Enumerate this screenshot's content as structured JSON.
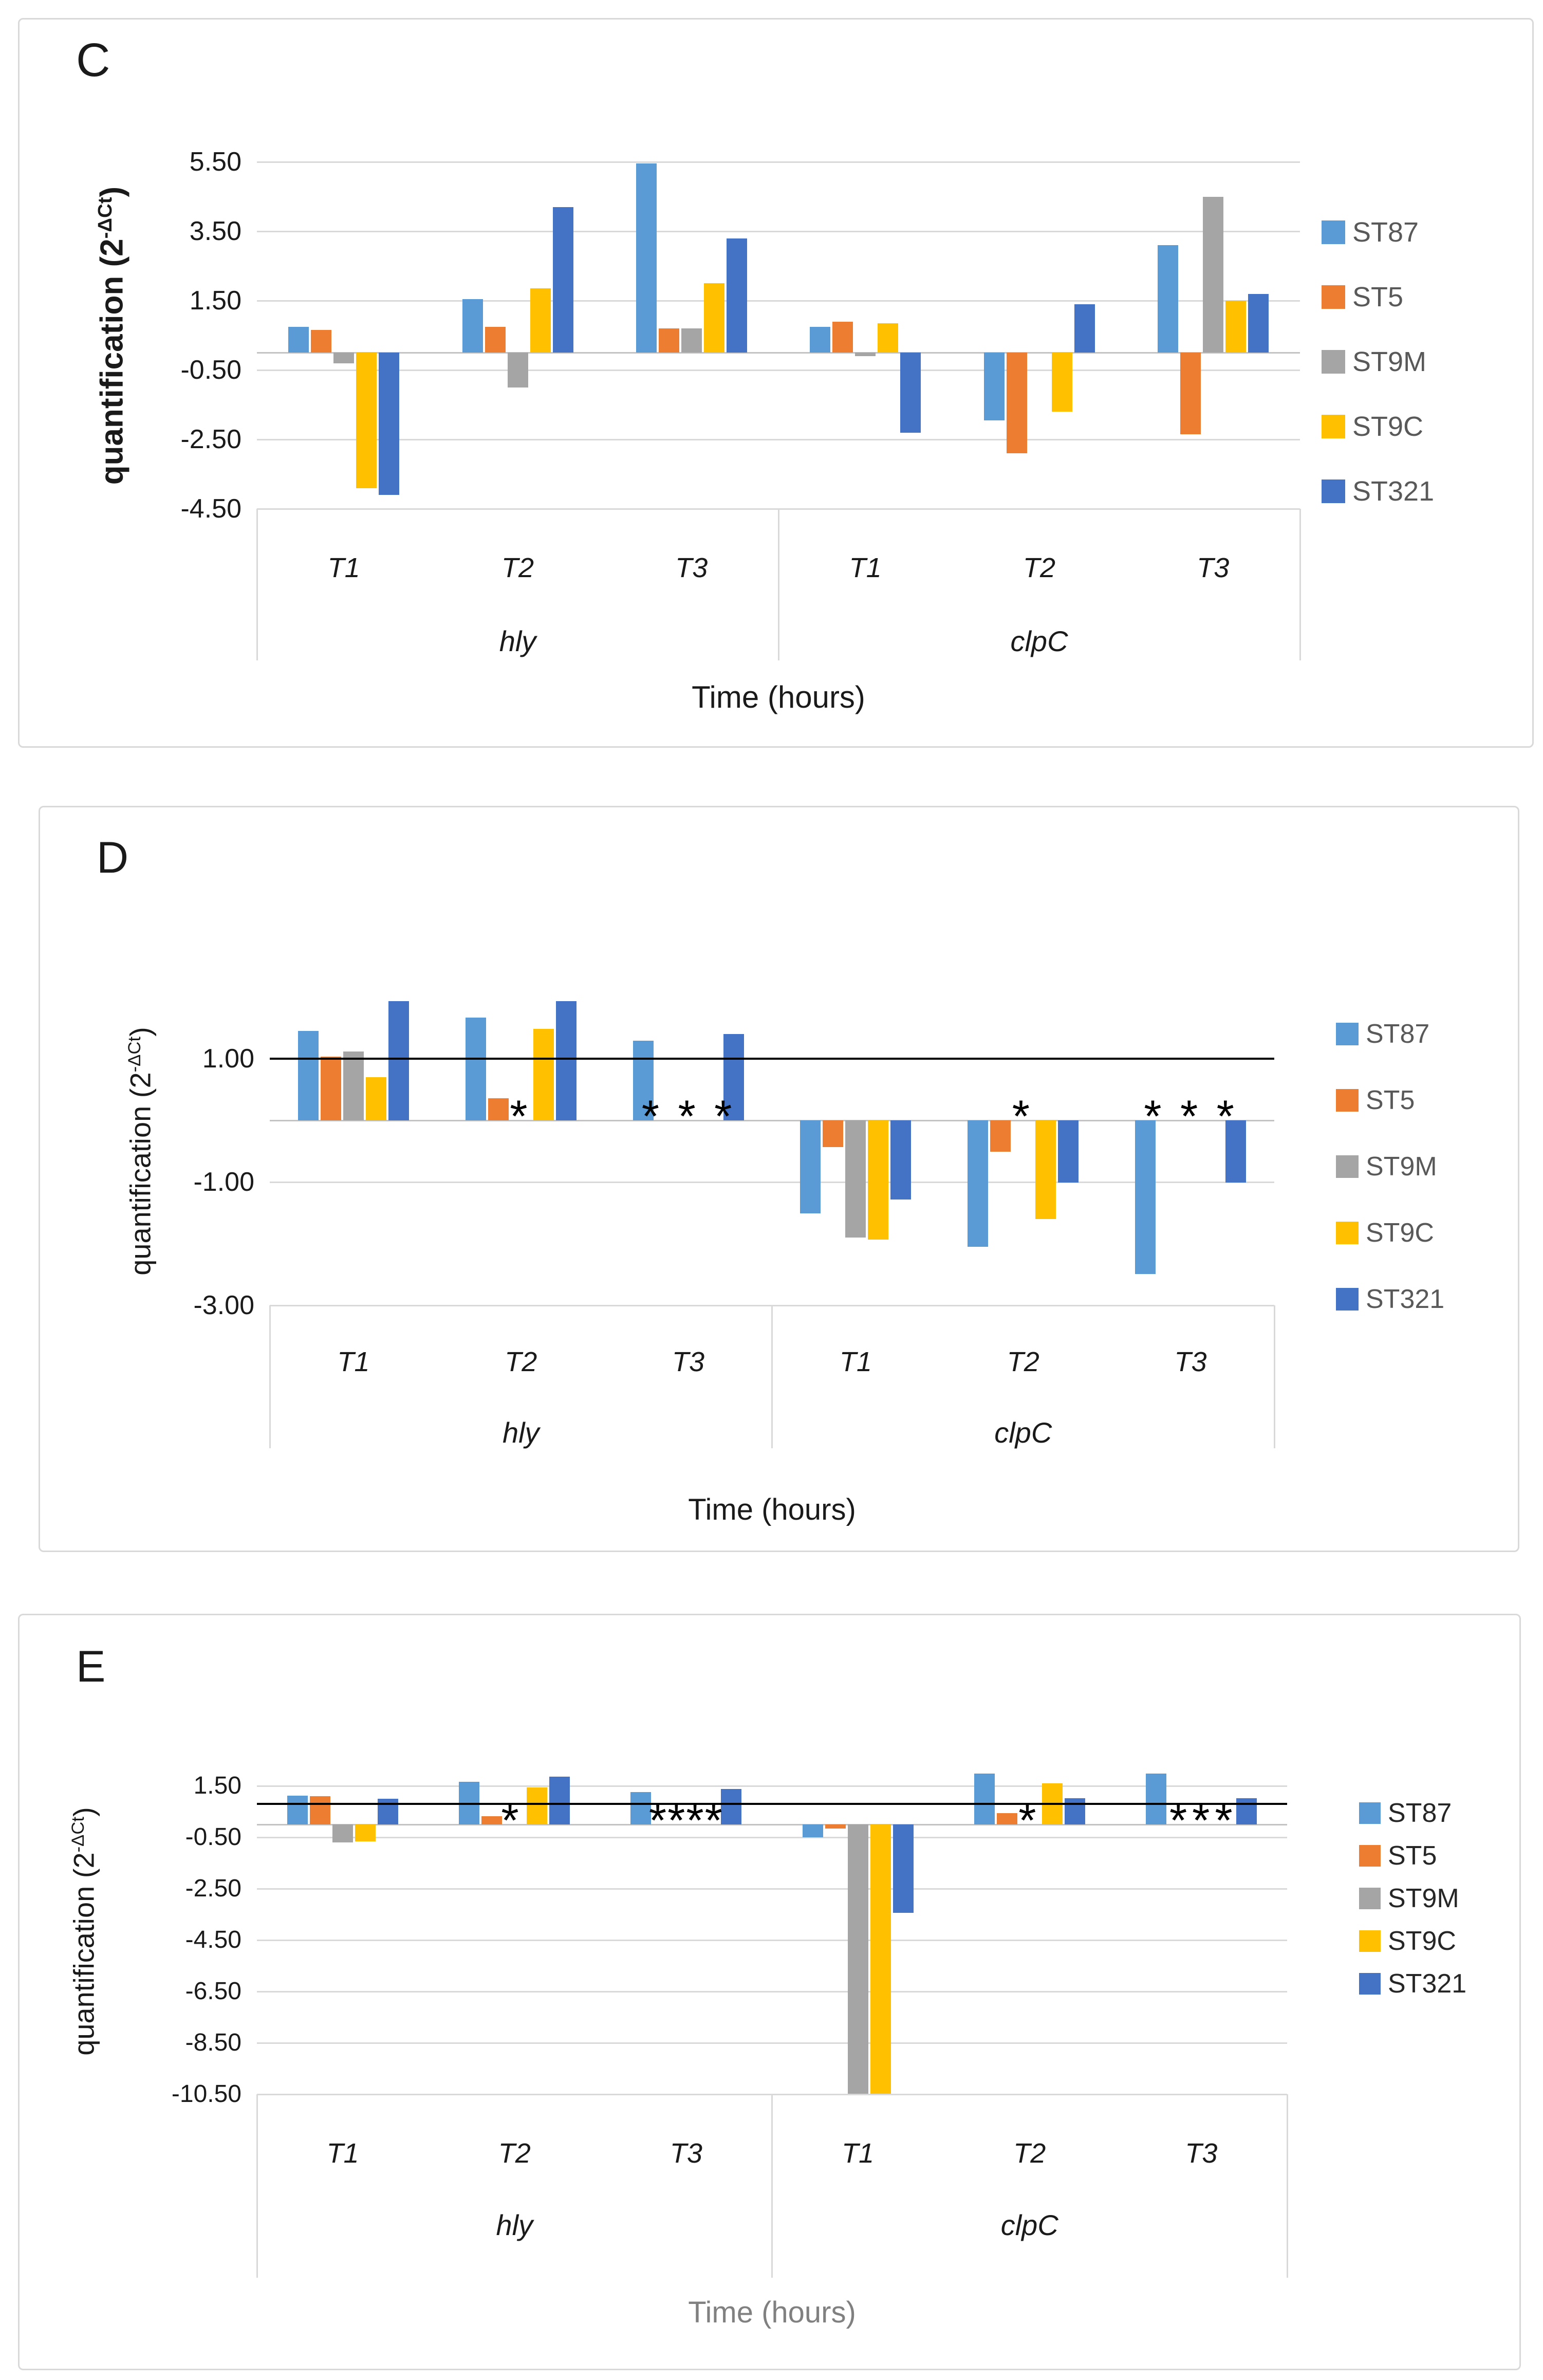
{
  "figure_title": "",
  "shared": {
    "ylabel_base": "quantification (2",
    "ylabel_sup": "-ΔCt",
    "ylabel_end": ")",
    "xlabel": "Time (hours)",
    "series_colors": {
      "ST87": "#5B9BD5",
      "ST5": "#ED7D31",
      "ST9M": "#A5A5A5",
      "ST9C": "#FFC000",
      "ST321": "#4472C4"
    },
    "gridline_color": "#D9D9D9",
    "reference_line_color": "#000000",
    "legend_text_color": "#595959"
  },
  "chart_data": [
    {
      "type": "bar",
      "panel_label": "C",
      "title": "",
      "xlabel": "Time (hours)",
      "xlabel_color": "#1a1a1a",
      "ylabel_base": "quantification (2",
      "ylabel_sup": "-ΔCt",
      "ylabel_end": ")",
      "categories": [
        "hly T1",
        "hly T2",
        "hly T3",
        "clpC T1",
        "clpC T2",
        "clpC T3"
      ],
      "time_labels": [
        "T1",
        "T2",
        "T3",
        "T1",
        "T2",
        "T3"
      ],
      "gene_labels": [
        "hly",
        "clpC"
      ],
      "ylim": [
        -4.5,
        5.5
      ],
      "ytick_values": [
        5.5,
        3.5,
        1.5,
        -0.5,
        -2.5,
        -4.5
      ],
      "ytick_labels": [
        "5.50",
        "3.50",
        "1.50",
        "-0.50",
        "-2.50",
        "-4.50"
      ],
      "grid": true,
      "legend_position": "right",
      "reference_line": null,
      "series": [
        {
          "name": "ST87",
          "color": "#5B9BD5",
          "values": [
            0.75,
            1.55,
            5.45,
            0.75,
            -1.95,
            3.1
          ]
        },
        {
          "name": "ST5",
          "color": "#ED7D31",
          "values": [
            0.65,
            0.75,
            0.7,
            0.9,
            -2.9,
            -2.35
          ]
        },
        {
          "name": "ST9M",
          "color": "#A5A5A5",
          "values": [
            -0.3,
            -1.0,
            0.7,
            -0.1,
            0,
            4.5
          ]
        },
        {
          "name": "ST9C",
          "color": "#FFC000",
          "values": [
            -3.9,
            1.85,
            2.0,
            0.85,
            -1.7,
            1.5
          ]
        },
        {
          "name": "ST321",
          "color": "#4472C4",
          "values": [
            -4.1,
            4.2,
            3.3,
            -2.3,
            1.4,
            1.7
          ]
        }
      ],
      "annotations": []
    },
    {
      "type": "bar",
      "panel_label": "D",
      "title": "",
      "xlabel": "Time (hours)",
      "xlabel_color": "#1a1a1a",
      "ylabel_base": "quantification (2",
      "ylabel_sup": "-ΔCt",
      "ylabel_end": ")",
      "categories": [
        "hly T1",
        "hly T2",
        "hly T3",
        "clpC T1",
        "clpC T2",
        "clpC T3"
      ],
      "time_labels": [
        "T1",
        "T2",
        "T3",
        "T1",
        "T2",
        "T3"
      ],
      "gene_labels": [
        "hly",
        "clpC"
      ],
      "ylim": [
        -3.0,
        2.0
      ],
      "ytick_values": [
        1.0,
        -1.0,
        -3.0
      ],
      "ytick_labels": [
        "1.00",
        "-1.00",
        "-3.00"
      ],
      "grid": true,
      "legend_position": "right",
      "reference_line": 1.0,
      "series": [
        {
          "name": "ST87",
          "color": "#5B9BD5",
          "values": [
            1.45,
            1.67,
            1.29,
            -1.51,
            -2.05,
            -2.49
          ]
        },
        {
          "name": "ST5",
          "color": "#ED7D31",
          "values": [
            1.03,
            0.36,
            0,
            -0.43,
            -0.51,
            0
          ]
        },
        {
          "name": "ST9M",
          "color": "#A5A5A5",
          "values": [
            1.12,
            0,
            0,
            -1.9,
            0,
            0
          ]
        },
        {
          "name": "ST9C",
          "color": "#FFC000",
          "values": [
            0.7,
            1.48,
            0,
            -1.93,
            -1.6,
            0
          ]
        },
        {
          "name": "ST321",
          "color": "#4472C4",
          "values": [
            1.93,
            1.93,
            1.4,
            -1.28,
            -1.01,
            -1.01
          ]
        }
      ],
      "annotations": [
        {
          "category": "hly T2",
          "text": "*",
          "slot_index": 1.9
        },
        {
          "category": "hly T3",
          "text": "* * *",
          "slot_index": 2.0
        },
        {
          "category": "clpC T2",
          "text": "*",
          "slot_index": 1.9
        },
        {
          "category": "clpC T3",
          "text": "* * *",
          "slot_index": 2.0
        }
      ]
    },
    {
      "type": "bar",
      "panel_label": "E",
      "title": "",
      "xlabel": "Time (hours)",
      "xlabel_color": "#808080",
      "ylabel_base": "quantification (2",
      "ylabel_sup": "-ΔCt",
      "ylabel_end": ")",
      "categories": [
        "hly T1",
        "hly T2",
        "hly T3",
        "clpC T1",
        "clpC T2",
        "clpC T3"
      ],
      "time_labels": [
        "T1",
        "T2",
        "T3",
        "T1",
        "T2",
        "T3"
      ],
      "gene_labels": [
        "hly",
        "clpC"
      ],
      "ylim": [
        -10.5,
        2.2
      ],
      "ytick_values": [
        1.5,
        -0.5,
        -2.5,
        -4.5,
        -6.5,
        -8.5,
        -10.5
      ],
      "ytick_labels": [
        "1.50",
        "-0.50",
        "-2.50",
        "-4.50",
        "-6.50",
        "-8.50",
        "-10.50"
      ],
      "grid": true,
      "legend_position": "right",
      "reference_line": 0.8,
      "series": [
        {
          "name": "ST87",
          "color": "#5B9BD5",
          "values": [
            1.12,
            1.66,
            1.26,
            -0.49,
            1.98,
            1.98
          ]
        },
        {
          "name": "ST5",
          "color": "#ED7D31",
          "values": [
            1.1,
            0.33,
            0,
            -0.15,
            0.45,
            0
          ]
        },
        {
          "name": "ST9M",
          "color": "#A5A5A5",
          "values": [
            -0.7,
            0,
            0,
            -10.5,
            0,
            0
          ]
        },
        {
          "name": "ST9C",
          "color": "#FFC000",
          "values": [
            -0.66,
            1.45,
            0,
            -10.5,
            1.6,
            0
          ]
        },
        {
          "name": "ST321",
          "color": "#4472C4",
          "values": [
            1.01,
            1.87,
            1.38,
            -3.43,
            1.02,
            1.03
          ]
        }
      ],
      "annotations": [
        {
          "category": "hly T2",
          "text": "*",
          "slot_index": 1.8
        },
        {
          "category": "hly T3",
          "text": "****",
          "slot_index": 2.0
        },
        {
          "category": "clpC T2",
          "text": "*",
          "slot_index": 1.9
        },
        {
          "category": "clpC T3",
          "text": "***",
          "slot_index": 2.1
        }
      ]
    }
  ]
}
